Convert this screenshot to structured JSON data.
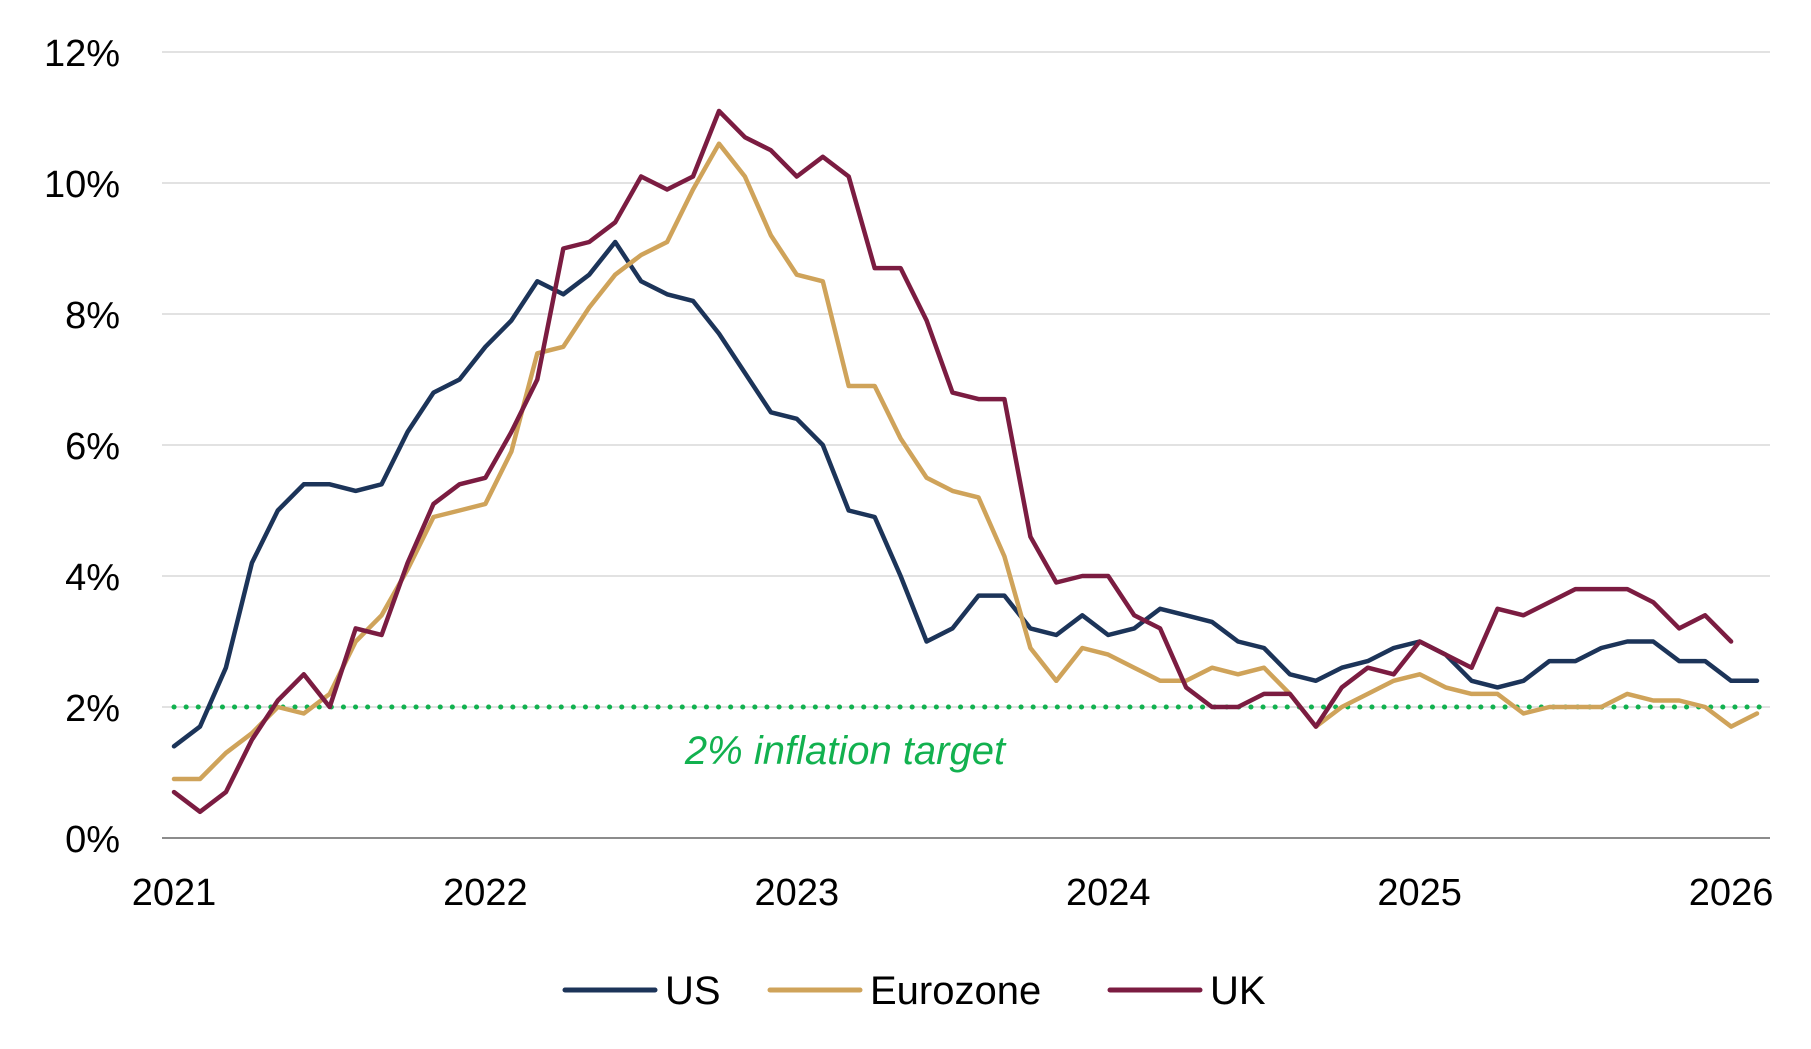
{
  "chart_data": {
    "type": "line",
    "title": "",
    "xlabel": "",
    "ylabel": "",
    "x_start": "2021-01",
    "x_interval": "monthly",
    "xlim": [
      "2021-01",
      "2026-02"
    ],
    "ylim": [
      0,
      12
    ],
    "y_unit": "%",
    "grid": "horizontal",
    "legend_position": "bottom",
    "x_tick_labels": [
      "2021",
      "2022",
      "2023",
      "2024",
      "2025",
      "2026"
    ],
    "y_tick_labels": [
      "0%",
      "2%",
      "4%",
      "6%",
      "8%",
      "10%",
      "12%"
    ],
    "series": [
      {
        "name": "US",
        "color": "#1c3459",
        "values": [
          1.4,
          1.7,
          2.6,
          4.2,
          5.0,
          5.4,
          5.4,
          5.3,
          5.4,
          6.2,
          6.8,
          7.0,
          7.5,
          7.9,
          8.5,
          8.3,
          8.6,
          9.1,
          8.5,
          8.3,
          8.2,
          7.7,
          7.1,
          6.5,
          6.4,
          6.0,
          5.0,
          4.9,
          4.0,
          3.0,
          3.2,
          3.7,
          3.7,
          3.2,
          3.1,
          3.4,
          3.1,
          3.2,
          3.5,
          3.4,
          3.3,
          3.0,
          2.9,
          2.5,
          2.4,
          2.6,
          2.7,
          2.9,
          3.0,
          2.8,
          2.4,
          2.3,
          2.4,
          2.7,
          2.7,
          2.9,
          3.0,
          3.0,
          2.7,
          2.7,
          2.4,
          2.4
        ]
      },
      {
        "name": "Eurozone",
        "color": "#cfa35a",
        "values": [
          0.9,
          0.9,
          1.3,
          1.6,
          2.0,
          1.9,
          2.2,
          3.0,
          3.4,
          4.1,
          4.9,
          5.0,
          5.1,
          5.9,
          7.4,
          7.5,
          8.1,
          8.6,
          8.9,
          9.1,
          9.9,
          10.6,
          10.1,
          9.2,
          8.6,
          8.5,
          6.9,
          6.9,
          6.1,
          5.5,
          5.3,
          5.2,
          4.3,
          2.9,
          2.4,
          2.9,
          2.8,
          2.6,
          2.4,
          2.4,
          2.6,
          2.5,
          2.6,
          2.2,
          1.7,
          2.0,
          2.2,
          2.4,
          2.5,
          2.3,
          2.2,
          2.2,
          1.9,
          2.0,
          2.0,
          2.0,
          2.2,
          2.1,
          2.1,
          2.0,
          1.7,
          1.9
        ]
      },
      {
        "name": "UK",
        "color": "#7b1c41",
        "values": [
          0.7,
          0.4,
          0.7,
          1.5,
          2.1,
          2.5,
          2.0,
          3.2,
          3.1,
          4.2,
          5.1,
          5.4,
          5.5,
          6.2,
          7.0,
          9.0,
          9.1,
          9.4,
          10.1,
          9.9,
          10.1,
          11.1,
          10.7,
          10.5,
          10.1,
          10.4,
          10.1,
          8.7,
          8.7,
          7.9,
          6.8,
          6.7,
          6.7,
          4.6,
          3.9,
          4.0,
          4.0,
          3.4,
          3.2,
          2.3,
          2.0,
          2.0,
          2.2,
          2.2,
          1.7,
          2.3,
          2.6,
          2.5,
          3.0,
          2.8,
          2.6,
          3.5,
          3.4,
          3.6,
          3.8,
          3.8,
          3.8,
          3.6,
          3.2,
          3.4,
          3.0
        ]
      }
    ],
    "reference_line": {
      "value": 2,
      "label": "2% inflation target",
      "color": "#12b14f",
      "style": "dotted"
    }
  }
}
